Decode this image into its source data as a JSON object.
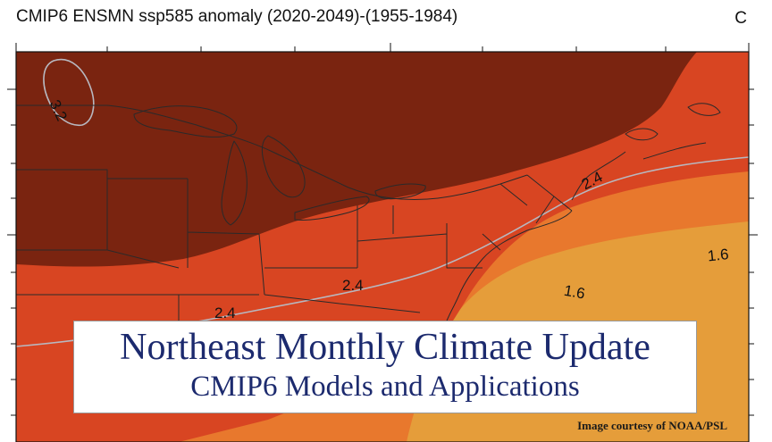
{
  "map": {
    "title": "CMIP6 ENSMN ssp585 anomaly (2020-2049)-(1955-1984)",
    "corner_label": "C",
    "contour_labels": {
      "label_3_2": "3.2",
      "label_2_4_northeast": "2.4",
      "label_2_4_center": "2.4",
      "label_2_4_west": "2.4",
      "label_1_6_east": "1.6",
      "label_1_6_center": "1.6"
    },
    "colors": {
      "zone_3_2_plus": "#7a2410",
      "zone_2_4_to_3_2": "#d84522",
      "zone_1_6_to_2_4": "#e8782d",
      "zone_below_1_6": "#e59d3a",
      "contour_line": "#b8b8c0",
      "border_line": "#2a2a2a"
    }
  },
  "banner": {
    "title": "Northeast Monthly Climate Update",
    "subtitle": "CMIP6 Models and Applications"
  },
  "credit": "Image courtesy of NOAA/PSL"
}
